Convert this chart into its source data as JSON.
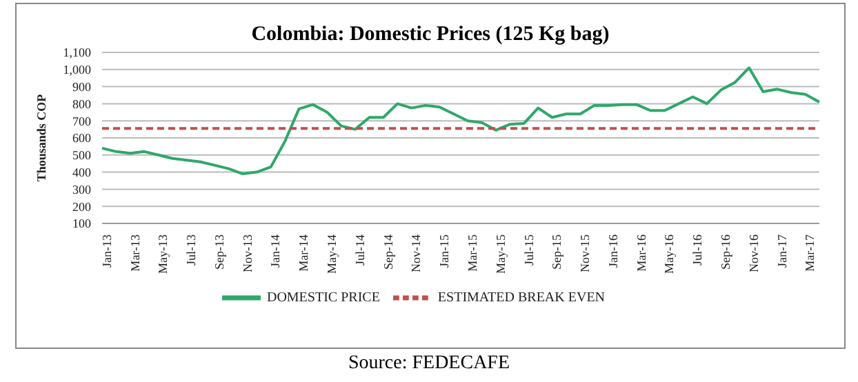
{
  "chart_data": {
    "type": "line",
    "title": "Colombia: Domestic Prices (125 Kg bag)",
    "ylabel": "Thousands COP",
    "annotations": [
      "Source: FEDECAFE"
    ],
    "categories": [
      "Jan-13",
      null,
      "Mar-13",
      null,
      "May-13",
      null,
      "Jul-13",
      null,
      "Sep-13",
      null,
      "Nov-13",
      null,
      "Jan-14",
      null,
      "Mar-14",
      null,
      "May-14",
      null,
      "Jul-14",
      null,
      "Sep-14",
      null,
      "Nov-14",
      null,
      "Jan-15",
      null,
      "Mar-15",
      null,
      "May-15",
      null,
      "Jul-15",
      null,
      "Sep-15",
      null,
      "Nov-15",
      null,
      "Jan-16",
      null,
      "Mar-16",
      null,
      "May-16",
      null,
      "Jul-16",
      null,
      "Sep-16",
      null,
      "Nov-16",
      null,
      "Jan-17",
      null,
      "Mar-17",
      null
    ],
    "series": [
      {
        "name": "DOMESTIC PRICE",
        "color": "#2ea86a",
        "line_style": "solid",
        "values": [
          540,
          520,
          510,
          520,
          500,
          480,
          470,
          460,
          440,
          420,
          390,
          400,
          430,
          580,
          770,
          795,
          750,
          670,
          650,
          720,
          720,
          800,
          775,
          790,
          780,
          740,
          700,
          690,
          645,
          680,
          685,
          775,
          720,
          740,
          740,
          790,
          790,
          795,
          795,
          760,
          760,
          800,
          840,
          800,
          880,
          925,
          1010,
          870,
          885,
          865,
          855,
          810
        ]
      },
      {
        "name": "ESTIMATED BREAK EVEN",
        "color": "#c0504d",
        "line_style": "dashed",
        "values": [
          655,
          655,
          655,
          655,
          655,
          655,
          655,
          655,
          655,
          655,
          655,
          655,
          655,
          655,
          655,
          655,
          655,
          655,
          655,
          655,
          655,
          655,
          655,
          655,
          655,
          655,
          655,
          655,
          655,
          655,
          655,
          655,
          655,
          655,
          655,
          655,
          655,
          655,
          655,
          655,
          655,
          655,
          655,
          655,
          655,
          655,
          655,
          655,
          655,
          655,
          655,
          655
        ]
      }
    ],
    "ylim": [
      100,
      1100
    ],
    "yticks": [
      100,
      200,
      300,
      400,
      500,
      600,
      700,
      800,
      900,
      {
        "value": 1000,
        "label": "1,000"
      },
      {
        "value": 1100,
        "label": "1,100"
      }
    ],
    "grid": "y",
    "legend": "bottom",
    "marker": "none"
  }
}
